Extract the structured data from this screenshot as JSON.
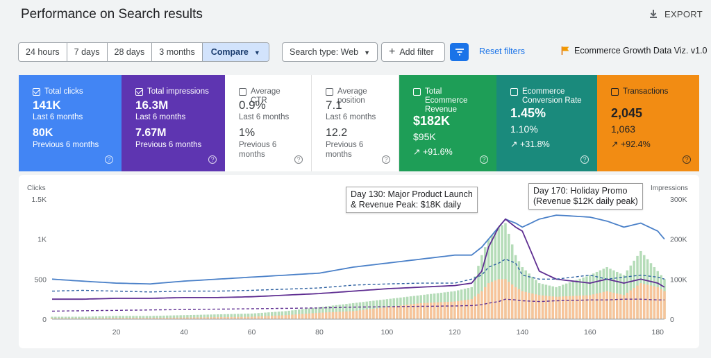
{
  "header": {
    "title": "Performance on Search results",
    "export_label": "EXPORT"
  },
  "toolbar": {
    "ranges": [
      "24 hours",
      "7 days",
      "28 days",
      "3 months",
      "Compare"
    ],
    "active_range": "Compare",
    "search_type": "Search type: Web",
    "add_filter": "Add filter",
    "reset_filters": "Reset filters",
    "tag": "Ecommerce Growth Data Viz. v1.0"
  },
  "cards": [
    {
      "label": "Total clicks",
      "checked": true,
      "value": "141K",
      "sub": "Last 6 months",
      "value2": "80K",
      "sub2": "Previous 6 months",
      "bg": "#4285f4"
    },
    {
      "label": "Total impressions",
      "checked": true,
      "value": "16.3M",
      "sub": "Last 6 months",
      "value2": "7.67M",
      "sub2": "Previous 6 months",
      "bg": "#5e35b1"
    },
    {
      "label": "Average CTR",
      "checked": false,
      "value": "0.9%",
      "sub": "Last 6 months",
      "value2": "1%",
      "sub2": "Previous 6 months",
      "bg": "#ffffff"
    },
    {
      "label": "Average position",
      "checked": false,
      "value": "7.1",
      "sub": "Last 6 months",
      "value2": "12.2",
      "sub2": "Previous 6 months",
      "bg": "#ffffff"
    },
    {
      "label": "Total Ecommerce Revenue",
      "checked": false,
      "value": "$182K",
      "value2": "$95K",
      "trend": "↗ +91.6%",
      "bg": "#1e9e57"
    },
    {
      "label": "Ecommerce Conversion Rate",
      "checked": false,
      "value": "1.45%",
      "value2": "1.10%",
      "trend": "↗ +31.8%",
      "bg": "#1a8a7c"
    },
    {
      "label": "Transactions",
      "checked": false,
      "value": "2,045",
      "value2": "1,063",
      "trend": "↗ +92.4%",
      "bg": "#f28c13"
    }
  ],
  "chart": {
    "left_axis_title": "Clicks",
    "right_axis_title": "Impressions",
    "left_ticks": [
      "1.5K",
      "1K",
      "500",
      "0"
    ],
    "right_ticks": [
      "300K",
      "200K",
      "100K",
      "0"
    ],
    "x_ticks": [
      "20",
      "40",
      "60",
      "80",
      "100",
      "120",
      "140",
      "160",
      "180"
    ],
    "annotation_1": [
      "Day 130: Major Product Launch",
      "& Revenue Peak: $18K daily"
    ],
    "annotation_2": [
      "Day 170: Holiday Promo",
      "(Revenue $12K daily peak)"
    ]
  },
  "chart_data": {
    "type": "line",
    "x_range": [
      1,
      182
    ],
    "xticks": [
      20,
      40,
      60,
      80,
      100,
      120,
      140,
      160,
      180
    ],
    "left_axis": {
      "label": "Clicks",
      "range": [
        0,
        1500
      ],
      "ticks": [
        "0",
        "500",
        "1K",
        "1.5K"
      ]
    },
    "right_axis": {
      "label": "Impressions",
      "range": [
        0,
        300000
      ],
      "ticks": [
        "0",
        "100K",
        "200K",
        "300K"
      ]
    },
    "keyframes_x": [
      1,
      10,
      20,
      30,
      40,
      50,
      60,
      70,
      80,
      90,
      100,
      110,
      120,
      125,
      128,
      130,
      133,
      135,
      138,
      140,
      145,
      150,
      160,
      165,
      170,
      175,
      180,
      182
    ],
    "series": [
      {
        "color": "#4a80c8",
        "axis": "right",
        "values": [
          100000,
          95000,
          90000,
          88000,
          95000,
          100000,
          105000,
          110000,
          115000,
          130000,
          140000,
          150000,
          160000,
          160000,
          180000,
          200000,
          230000,
          250000,
          240000,
          230000,
          250000,
          260000,
          255000,
          245000,
          230000,
          240000,
          220000,
          200000
        ]
      },
      {
        "color": "#5e2d91",
        "axis": "left",
        "values": [
          250,
          250,
          260,
          260,
          270,
          270,
          280,
          300,
          320,
          350,
          380,
          400,
          420,
          450,
          600,
          900,
          1150,
          1250,
          1150,
          1100,
          600,
          500,
          450,
          500,
          450,
          500,
          450,
          400
        ]
      },
      {
        "color": "#2b5fa0",
        "axis": "right",
        "dashed": true,
        "values": [
          70000,
          72000,
          70000,
          68000,
          70000,
          70000,
          72000,
          75000,
          78000,
          85000,
          88000,
          90000,
          90000,
          100000,
          110000,
          130000,
          140000,
          150000,
          140000,
          110000,
          100000,
          100000,
          110000,
          100000,
          105000,
          110000,
          105000,
          100000
        ]
      },
      {
        "color": "#5e2d91",
        "axis": "left",
        "dashed": true,
        "values": [
          100,
          105,
          110,
          115,
          120,
          125,
          130,
          135,
          140,
          150,
          155,
          160,
          165,
          170,
          180,
          200,
          220,
          250,
          240,
          230,
          220,
          230,
          240,
          240,
          250,
          250,
          240,
          240
        ]
      }
    ],
    "bars": [
      {
        "color": "#b5dcb8",
        "axis": "left",
        "values": [
          30,
          30,
          40,
          40,
          50,
          60,
          70,
          100,
          150,
          200,
          250,
          300,
          350,
          400,
          800,
          1000,
          1150,
          1200,
          800,
          650,
          450,
          400,
          550,
          650,
          550,
          850,
          600,
          500
        ]
      },
      {
        "color": "#f7c49a",
        "axis": "left",
        "values": [
          10,
          10,
          15,
          15,
          20,
          25,
          30,
          50,
          80,
          100,
          150,
          200,
          220,
          250,
          350,
          450,
          500,
          500,
          400,
          350,
          300,
          280,
          300,
          350,
          300,
          450,
          400,
          350
        ]
      }
    ]
  }
}
